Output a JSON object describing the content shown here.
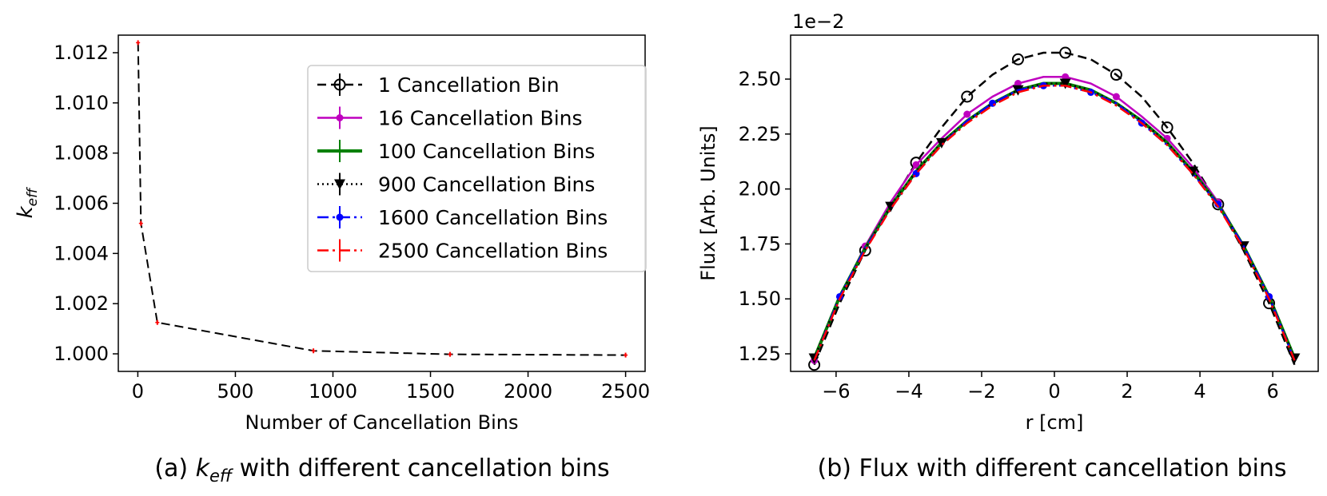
{
  "chart_data": [
    {
      "type": "line",
      "title": "",
      "caption": {
        "prefix": "(a) ",
        "k": "k",
        "sub": "eff",
        "suffix": " with different cancellation bins"
      },
      "xlabel": "Number of Cancellation Bins",
      "ylabel": {
        "k": "k",
        "sub": "eff"
      },
      "xlim": [
        -100,
        2600
      ],
      "ylim": [
        0.9993,
        1.0127
      ],
      "xticks": [
        0,
        500,
        1000,
        1500,
        2000,
        2500
      ],
      "xtick_labels": [
        "0",
        "500",
        "1000",
        "1500",
        "2000",
        "2500"
      ],
      "yticks": [
        1.0,
        1.002,
        1.004,
        1.006,
        1.008,
        1.01,
        1.012
      ],
      "ytick_labels": [
        "1.000",
        "1.002",
        "1.004",
        "1.006",
        "1.008",
        "1.010",
        "1.012"
      ],
      "grid": false,
      "series": [
        {
          "name": "k_eff",
          "color": "#000000",
          "linestyle": "dashed",
          "errorbar_color": "#ff0000",
          "x": [
            1,
            16,
            100,
            900,
            1600,
            2500
          ],
          "y": [
            1.0124,
            1.0052,
            1.00125,
            1.00012,
            0.99998,
            0.99995
          ]
        }
      ]
    },
    {
      "type": "line",
      "title": "",
      "caption": {
        "text": "(b) Flux with different cancellation bins"
      },
      "xlabel": "r [cm]",
      "ylabel": "Flux [Arb. Units]",
      "offset_text": "1e−2",
      "xlim": [
        -7.25,
        7.25
      ],
      "ylim": [
        1.17,
        2.7
      ],
      "xticks": [
        -6,
        -4,
        -2,
        0,
        2,
        4,
        6
      ],
      "xtick_labels": [
        "−6",
        "−4",
        "−2",
        "0",
        "2",
        "4",
        "6"
      ],
      "yticks": [
        1.25,
        1.5,
        1.75,
        2.0,
        2.25,
        2.5
      ],
      "ytick_labels": [
        "1.25",
        "1.50",
        "1.75",
        "2.00",
        "2.25",
        "2.50"
      ],
      "grid": false,
      "legend_position": "upper-right (shared with panel a)",
      "series": [
        {
          "name": "1 Cancellation Bin",
          "color": "#000000",
          "linestyle": "dashed",
          "marker": "circle-open",
          "x": [
            -6.6,
            -5.9,
            -5.2,
            -4.5,
            -3.8,
            -3.1,
            -2.4,
            -1.7,
            -1.0,
            -0.3,
            0.3,
            1.0,
            1.7,
            2.4,
            3.1,
            3.8,
            4.5,
            5.2,
            5.9,
            6.6
          ],
          "y": [
            1.2,
            1.48,
            1.72,
            1.93,
            2.12,
            2.28,
            2.42,
            2.52,
            2.59,
            2.62,
            2.62,
            2.59,
            2.52,
            2.42,
            2.28,
            2.12,
            1.93,
            1.72,
            1.48,
            1.2
          ],
          "marker_x": [
            -6.6,
            -5.2,
            -3.8,
            -2.4,
            -1.0,
            0.3,
            1.7,
            3.1,
            4.5,
            5.9
          ]
        },
        {
          "name": "16 Cancellation Bins",
          "color": "#bf00bf",
          "linestyle": "solid",
          "marker": "dot",
          "x": [
            -6.6,
            -5.9,
            -5.2,
            -4.5,
            -3.8,
            -3.1,
            -2.4,
            -1.7,
            -1.0,
            -0.3,
            0.3,
            1.0,
            1.7,
            2.4,
            3.1,
            3.8,
            4.5,
            5.2,
            5.9,
            6.6
          ],
          "y": [
            1.22,
            1.51,
            1.74,
            1.94,
            2.11,
            2.23,
            2.34,
            2.42,
            2.48,
            2.51,
            2.51,
            2.48,
            2.42,
            2.33,
            2.23,
            2.1,
            1.94,
            1.74,
            1.51,
            1.22
          ],
          "marker_x": [
            -6.6,
            -5.2,
            -3.8,
            -2.4,
            -1.0,
            0.3,
            1.7,
            3.1,
            4.5,
            5.9
          ]
        },
        {
          "name": "100 Cancellation Bins",
          "color": "#008000",
          "linestyle": "solid",
          "marker": "none",
          "x": [
            -6.6,
            -5.9,
            -5.2,
            -4.5,
            -3.8,
            -3.1,
            -2.4,
            -1.7,
            -1.0,
            -0.3,
            0.3,
            1.0,
            1.7,
            2.4,
            3.1,
            3.8,
            4.5,
            5.2,
            5.9,
            6.6
          ],
          "y": [
            1.23,
            1.51,
            1.73,
            1.92,
            2.08,
            2.21,
            2.31,
            2.39,
            2.45,
            2.48,
            2.48,
            2.45,
            2.39,
            2.31,
            2.21,
            2.08,
            1.93,
            1.74,
            1.51,
            1.23
          ],
          "marker_x": []
        },
        {
          "name": "900 Cancellation Bins",
          "color": "#000000",
          "linestyle": "dotted",
          "marker": "triangle-down",
          "x": [
            -6.6,
            -5.9,
            -5.2,
            -4.5,
            -3.8,
            -3.1,
            -2.4,
            -1.7,
            -1.0,
            -0.3,
            0.3,
            1.0,
            1.7,
            2.4,
            3.1,
            3.8,
            4.5,
            5.2,
            5.9,
            6.6
          ],
          "y": [
            1.23,
            1.51,
            1.73,
            1.92,
            2.08,
            2.21,
            2.31,
            2.39,
            2.45,
            2.48,
            2.48,
            2.45,
            2.39,
            2.31,
            2.21,
            2.08,
            1.93,
            1.74,
            1.51,
            1.23
          ],
          "marker_x": [
            -6.6,
            -4.5,
            -3.1,
            -1.0,
            0.3,
            3.8,
            5.2,
            6.6
          ]
        },
        {
          "name": "1600 Cancellation Bins",
          "color": "#0000ff",
          "linestyle": "dashdot",
          "marker": "dot",
          "x": [
            -6.6,
            -5.9,
            -5.2,
            -4.5,
            -3.8,
            -3.1,
            -2.4,
            -1.7,
            -1.0,
            -0.3,
            0.3,
            1.0,
            1.7,
            2.4,
            3.1,
            3.8,
            4.5,
            5.2,
            5.9,
            6.6
          ],
          "y": [
            1.22,
            1.51,
            1.73,
            1.91,
            2.07,
            2.2,
            2.31,
            2.39,
            2.45,
            2.47,
            2.47,
            2.44,
            2.39,
            2.3,
            2.2,
            2.07,
            1.93,
            1.74,
            1.51,
            1.22
          ],
          "marker_x": [
            -5.9,
            -3.8,
            -1.7,
            -0.3,
            1.0,
            2.4,
            4.5,
            5.9
          ]
        },
        {
          "name": "2500 Cancellation Bins",
          "color": "#ff0000",
          "linestyle": "dashdot",
          "marker": "none",
          "x": [
            -6.6,
            -5.9,
            -5.2,
            -4.5,
            -3.8,
            -3.1,
            -2.4,
            -1.7,
            -1.0,
            -0.3,
            0.3,
            1.0,
            1.7,
            2.4,
            3.1,
            3.8,
            4.5,
            5.2,
            5.9,
            6.6
          ],
          "y": [
            1.22,
            1.5,
            1.72,
            1.91,
            2.07,
            2.2,
            2.3,
            2.38,
            2.44,
            2.47,
            2.47,
            2.44,
            2.38,
            2.3,
            2.2,
            2.07,
            1.92,
            1.73,
            1.5,
            1.22
          ],
          "marker_x": []
        }
      ]
    }
  ]
}
